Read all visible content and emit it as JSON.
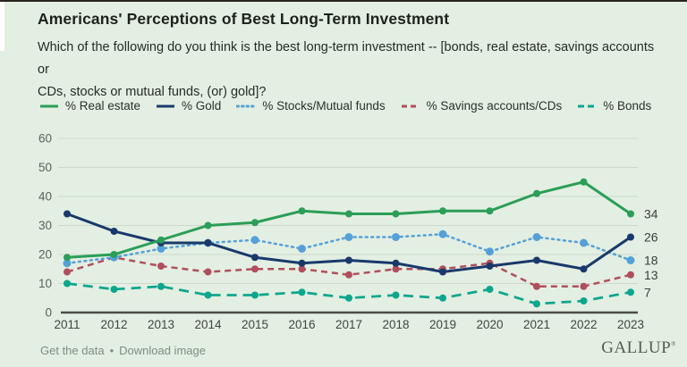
{
  "header": {
    "title": "Americans' Perceptions of Best Long-Term Investment",
    "subtitle_lines": [
      "Which of the following do you think is the best long-term investment -- [bonds, real estate, savings accounts or",
      "CDs, stocks or mutual funds, (or) gold]?"
    ]
  },
  "colors": {
    "background": "#e3efe2",
    "grid": "#cbd8ca",
    "axis": "#4c4c48",
    "real_estate": "#2b9e57",
    "gold": "#19396b",
    "stocks": "#55a0d8",
    "savings": "#b04f5c",
    "bonds": "#0ca68e"
  },
  "chart_data": {
    "type": "line",
    "title": "Americans' Perceptions of Best Long-Term Investment",
    "xlabel": "",
    "ylabel": "",
    "x": [
      2011,
      2012,
      2013,
      2014,
      2015,
      2016,
      2017,
      2018,
      2019,
      2020,
      2021,
      2022,
      2023
    ],
    "ylim": [
      0,
      60
    ],
    "yticks": [
      0,
      10,
      20,
      30,
      40,
      50,
      60
    ],
    "grid": "horizontal",
    "legend_position": "top",
    "series": [
      {
        "name": "% Real estate",
        "color": "#2b9e57",
        "dash": "solid",
        "values": [
          19,
          20,
          25,
          30,
          31,
          35,
          34,
          34,
          35,
          35,
          41,
          45,
          34
        ],
        "end_label": 34
      },
      {
        "name": "% Gold",
        "color": "#19396b",
        "dash": "solid",
        "values": [
          34,
          28,
          24,
          24,
          19,
          17,
          18,
          17,
          14,
          16,
          18,
          15,
          26
        ],
        "end_label": 26
      },
      {
        "name": "% Stocks/Mutual funds",
        "color": "#55a0d8",
        "dash": "dotted",
        "values": [
          17,
          19,
          22,
          24,
          25,
          22,
          26,
          26,
          27,
          21,
          26,
          24,
          18
        ],
        "end_label": 18
      },
      {
        "name": "% Savings accounts/CDs",
        "color": "#b04f5c",
        "dash": "dashed",
        "values": [
          14,
          19,
          16,
          14,
          15,
          15,
          13,
          15,
          15,
          17,
          9,
          9,
          13
        ],
        "end_label": 13
      },
      {
        "name": "% Bonds",
        "color": "#0ca68e",
        "dash": "dashed-long",
        "values": [
          10,
          8,
          9,
          6,
          6,
          7,
          5,
          6,
          5,
          8,
          3,
          4,
          7
        ],
        "end_label": 7
      }
    ]
  },
  "footer": {
    "get_data_label": "Get the data",
    "separator": "•",
    "download_label": "Download image",
    "brand": "GALLUP",
    "brand_mark": "®"
  }
}
